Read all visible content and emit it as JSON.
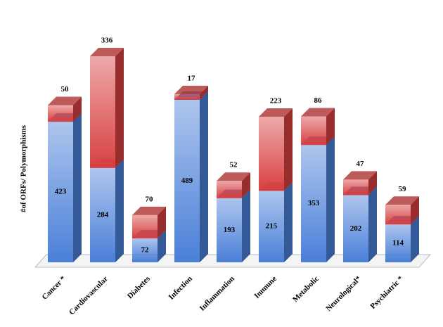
{
  "chart_data": {
    "type": "bar",
    "stacked": true,
    "y_label": "#of ORFs/ Polymorphisms",
    "categories": [
      "Cancer *",
      "Cardiovascular",
      "Diabetes",
      "Infection",
      "Inflammation",
      "Immune",
      "Metabolic",
      "Neurological*",
      "Psychiatric *"
    ],
    "series": [
      {
        "color": "#4a7fd8",
        "values": [
          423,
          284,
          72,
          489,
          193,
          215,
          353,
          202,
          114
        ]
      },
      {
        "color": "#d84040",
        "values": [
          50,
          336,
          70,
          17,
          52,
          223,
          86,
          47,
          59
        ]
      }
    ]
  }
}
